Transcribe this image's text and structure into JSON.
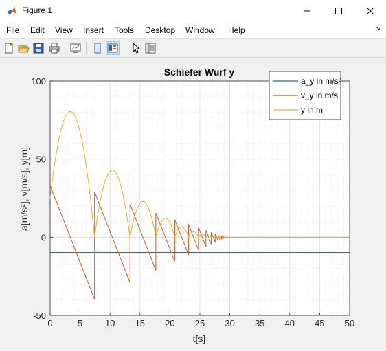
{
  "window": {
    "title": "Figure 1",
    "minimize_glyph": "—",
    "maximize_glyph": "☐",
    "close_glyph": "✕"
  },
  "menubar": {
    "items": [
      "File",
      "Edit",
      "View",
      "Insert",
      "Tools",
      "Desktop",
      "Window",
      "Help"
    ],
    "dock_glyph": "↘"
  },
  "toolbar": {
    "buttons": [
      "new-figure-icon",
      "open-file-icon",
      "save-icon",
      "print-icon",
      "link-plot-icon",
      "hide-plot-tools-icon",
      "show-plot-tools-icon",
      "edit-plot-icon",
      "property-inspector-icon"
    ]
  },
  "colors": {
    "series_a": "#0072bd",
    "series_v": "#d95319",
    "series_y": "#edb120"
  },
  "chart_data": {
    "type": "line",
    "title": "Schiefer Wurf y",
    "xlabel": "t[s]",
    "ylabel": "a[m/s²], v[m/s], y[m]",
    "xlim": [
      0,
      50
    ],
    "ylim": [
      -50,
      100
    ],
    "xticks": [
      0,
      5,
      10,
      15,
      20,
      25,
      30,
      35,
      40,
      45,
      50
    ],
    "yticks": [
      -50,
      0,
      50,
      100
    ],
    "grid": true,
    "minor_grid": true,
    "legend_position": "top-right",
    "legend": [
      "a_y in m/s²",
      "v_y in m/s",
      "y in m"
    ],
    "series": [
      {
        "name": "a_y in m/s²",
        "color": "#0072bd",
        "constant": -9.81,
        "x": [
          0,
          50
        ],
        "y": [
          -9.81,
          -9.81
        ]
      },
      {
        "name": "v_y in m/s",
        "color": "#d95319",
        "v0": 33,
        "restitution": 0.73,
        "initial_height": 25,
        "g": 9.81
      },
      {
        "name": "y in m",
        "color": "#edb120",
        "peaks": [
          {
            "t": 3.6,
            "y": 82.6
          },
          {
            "t": 10.7,
            "y": 44.9
          },
          {
            "t": 16.2,
            "y": 24.2
          },
          {
            "t": 20.1,
            "y": 13.0
          },
          {
            "t": 23.0,
            "y": 7.0
          }
        ],
        "settles_at": 31,
        "final_value": 0
      }
    ]
  }
}
